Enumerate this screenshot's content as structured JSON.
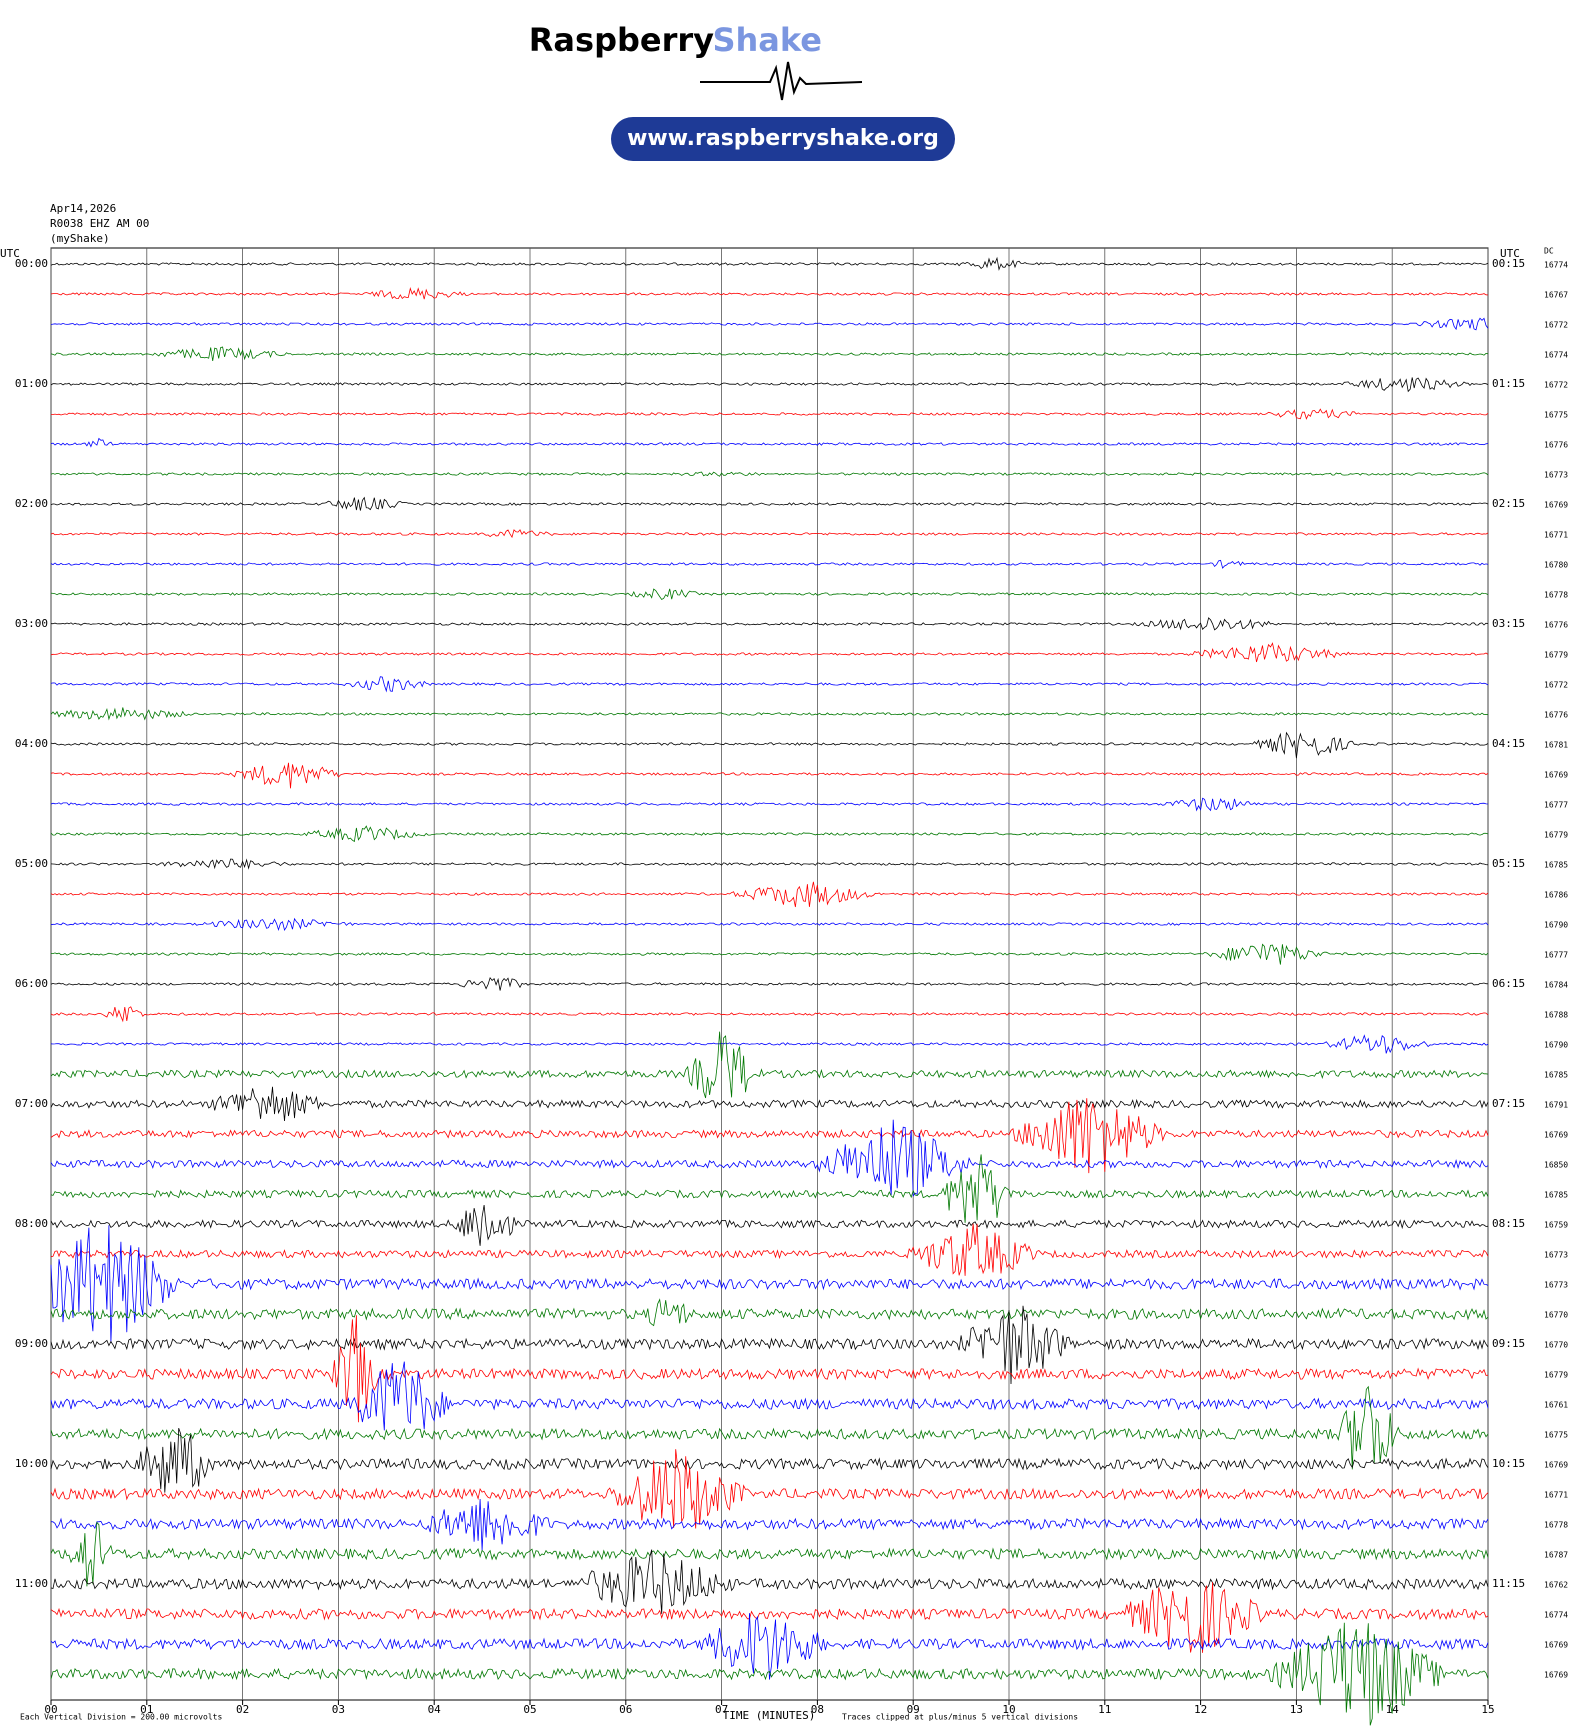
{
  "header": {
    "brand": "Raspberry",
    "brand_accent": "Shake",
    "url": "www.raspberryshake.org"
  },
  "plot": {
    "date": "Apr14,2026",
    "station": "R0038 EHZ AM 00",
    "source": "(myShake)",
    "left_axis_title": "UTC",
    "right_axis_title": "UTC",
    "dc_title": "DC",
    "left_labels": [
      "00:00",
      "01:00",
      "02:00",
      "03:00",
      "04:00",
      "05:00",
      "06:00",
      "07:00",
      "08:00",
      "09:00",
      "10:00",
      "11:00"
    ],
    "right_labels": [
      "00:15",
      "01:15",
      "02:15",
      "03:15",
      "04:15",
      "05:15",
      "06:15",
      "07:15",
      "08:15",
      "09:15",
      "10:15",
      "11:15"
    ],
    "dc_values": [
      16774,
      16767,
      16772,
      16774,
      16772,
      16775,
      16776,
      16773,
      16769,
      16771,
      16780,
      16778,
      16776,
      16779,
      16772,
      16776,
      16781,
      16769,
      16777,
      16779,
      16785,
      16786,
      16790,
      16777,
      16784,
      16788,
      16790,
      16785,
      16791,
      16769,
      16850,
      16785,
      16759,
      16773,
      16773,
      16770,
      16770,
      16779,
      16761,
      16775,
      16769,
      16771,
      16778,
      16787,
      16762,
      16774,
      16769,
      16769
    ],
    "xlim": [
      0,
      15
    ],
    "xticks": [
      {
        "value": 0,
        "label": "00"
      },
      {
        "value": 1,
        "label": "01"
      },
      {
        "value": 2,
        "label": "02"
      },
      {
        "value": 3,
        "label": "03"
      },
      {
        "value": 4,
        "label": "04"
      },
      {
        "value": 5,
        "label": "05"
      },
      {
        "value": 6,
        "label": "06"
      },
      {
        "value": 7,
        "label": "07"
      },
      {
        "value": 8,
        "label": "08"
      },
      {
        "value": 9,
        "label": "09"
      },
      {
        "value": 10,
        "label": "10"
      },
      {
        "value": 11,
        "label": "11"
      },
      {
        "value": 12,
        "label": "12"
      },
      {
        "value": 13,
        "label": "13"
      },
      {
        "value": 14,
        "label": "14"
      },
      {
        "value": 15,
        "label": "15"
      }
    ],
    "xlabel": "TIME (MINUTES)",
    "scale_note": "Each Vertical Division =  200.00 microvolts",
    "clip_note": "Traces clipped at plus/minus 5 vertical divisions",
    "trace_colors": [
      "#000000",
      "#ff0000",
      "#0000ff",
      "#007700"
    ]
  }
}
